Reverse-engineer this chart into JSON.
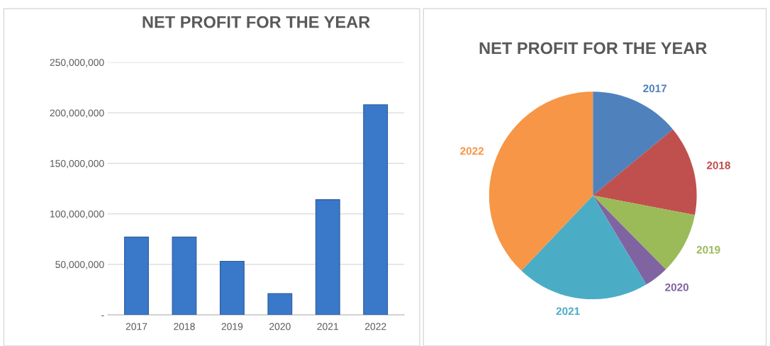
{
  "chart_data": [
    {
      "type": "bar",
      "title": "NET PROFIT FOR THE YEAR",
      "categories": [
        "2017",
        "2018",
        "2019",
        "2020",
        "2021",
        "2022"
      ],
      "values": [
        77000000,
        77000000,
        53000000,
        21000000,
        114000000,
        208000000
      ],
      "color": "#3a78c9",
      "ylim": [
        0,
        250000000
      ],
      "yticks": [
        {
          "value": 0,
          "label": "-"
        },
        {
          "value": 50000000,
          "label": "50,000,000"
        },
        {
          "value": 100000000,
          "label": "100,000,000"
        },
        {
          "value": 150000000,
          "label": "150,000,000"
        },
        {
          "value": 200000000,
          "label": "200,000,000"
        },
        {
          "value": 250000000,
          "label": "250,000,000"
        }
      ],
      "grid": "y"
    },
    {
      "type": "pie",
      "title": "NET PROFIT FOR THE YEAR",
      "categories": [
        "2017",
        "2018",
        "2019",
        "2020",
        "2021",
        "2022"
      ],
      "values": [
        14.0,
        14.0,
        9.6,
        3.8,
        20.7,
        37.9
      ],
      "colors": [
        "#4f81bd",
        "#c0504d",
        "#9bbb59",
        "#8064a2",
        "#4bacc6",
        "#f79646"
      ]
    }
  ]
}
